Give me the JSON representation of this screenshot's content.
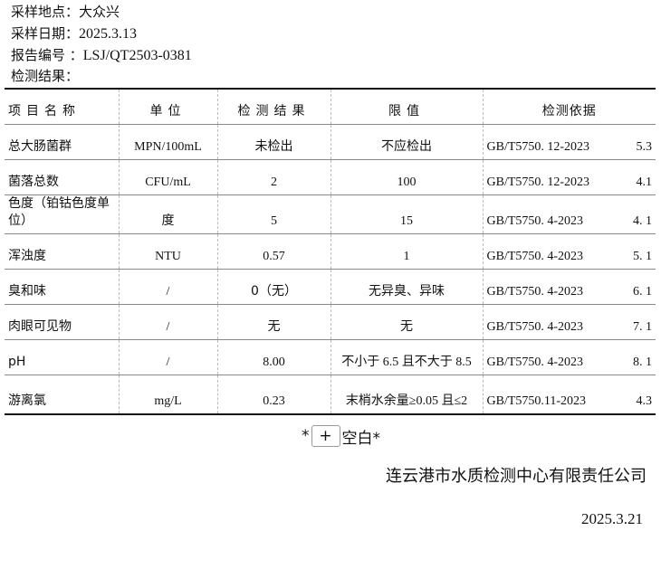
{
  "header": {
    "site_label": "采样地点：",
    "site": "大众兴",
    "date_label": "采样日期：",
    "date": "2025.3.13",
    "report_label": "报告编号 ：",
    "report_no": "LSJ/QT2503-0381",
    "results_label": "检测结果："
  },
  "table": {
    "columns": [
      "项目名称",
      "单位",
      "检测结果",
      "限值",
      "检测依据"
    ],
    "rows": [
      {
        "item": "总大肠菌群",
        "unit": "MPN/100mL",
        "result": "未检出",
        "limit": "不应检出",
        "method": "GB/T5750. 12-2023",
        "clause": "5.3"
      },
      {
        "item": "菌落总数",
        "unit": "CFU/mL",
        "result": "2",
        "limit": "100",
        "method": "GB/T5750. 12-2023",
        "clause": "4.1"
      },
      {
        "item": "色度（铂钴色度单位）",
        "unit": "度",
        "result": "5",
        "limit": "15",
        "method": "GB/T5750. 4-2023",
        "clause": "4. 1"
      },
      {
        "item": "浑浊度",
        "unit": "NTU",
        "result": "0.57",
        "limit": "1",
        "method": "GB/T5750. 4-2023",
        "clause": "5. 1"
      },
      {
        "item": "臭和味",
        "unit": "/",
        "result": "0（无）",
        "limit": "无异臭、异味",
        "method": "GB/T5750. 4-2023",
        "clause": "6. 1"
      },
      {
        "item": "肉眼可见物",
        "unit": "/",
        "result": "无",
        "limit": "无",
        "method": "GB/T5750. 4-2023",
        "clause": "7. 1"
      },
      {
        "item": "pH",
        "unit": "/",
        "result": "8.00",
        "limit": "不小于 6.5 且不大于 8.5",
        "method": "GB/T5750. 4-2023",
        "clause": "8. 1"
      },
      {
        "item": "游离氯",
        "unit": "mg/L",
        "result": "0.23",
        "limit": "末梢水余量≥0.05 且≤2",
        "method": "GB/T5750.11-2023",
        "clause": "4.3"
      }
    ]
  },
  "blank": {
    "prefix": "*",
    "plus": "+",
    "text": "空白*"
  },
  "footer": {
    "company": "连云港市水质检测中心有限责任公司",
    "date": "2025.3.21"
  }
}
